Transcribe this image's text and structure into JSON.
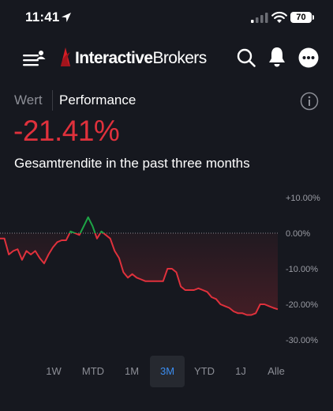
{
  "status_bar": {
    "time": "11:41",
    "battery": "70"
  },
  "header": {
    "brand_bold": "Interactive",
    "brand_regular": "Brokers"
  },
  "tabs": {
    "wert": "Wert",
    "performance": "Performance"
  },
  "performance": {
    "value": "-21.41%",
    "label": "Gesamtrendite in the past three months"
  },
  "colors": {
    "negative": "#e0313c",
    "positive": "#1ea446",
    "accent": "#3b8df0",
    "background": "#16181f"
  },
  "chart_data": {
    "type": "line",
    "ylim": [
      -30,
      10
    ],
    "yticks": [
      "+10.00%",
      "0.00%",
      "-10.00%",
      "-20.00%",
      "-30.00%"
    ],
    "ytick_values": [
      10,
      0,
      -10,
      -20,
      -30
    ],
    "baseline": 0,
    "series": [
      {
        "values": [
          -1.5,
          -1.5,
          -6,
          -5,
          -4.5,
          -7.5,
          -5,
          -6,
          -5,
          -7,
          -8.5,
          -6,
          -4,
          -2.5,
          -2,
          -2,
          0.5,
          0,
          -0.5,
          2,
          4.5,
          2,
          -1.5,
          0.5,
          -0.5,
          -1.5,
          -5,
          -7,
          -11,
          -12.5,
          -11.5,
          -12.5,
          -13,
          -13.5,
          -13.5,
          -13.5,
          -13.5,
          -13.5,
          -10,
          -10,
          -11,
          -15,
          -16,
          -16,
          -16,
          -15.5,
          -16,
          -16.5,
          -18,
          -18.5,
          -20,
          -20.5,
          -21,
          -22,
          -22.5,
          -22.5,
          -23,
          -23,
          -22.5,
          -20,
          -20,
          -20.5,
          -21,
          -21.4
        ]
      }
    ]
  },
  "ranges": [
    {
      "label": "1W",
      "active": false
    },
    {
      "label": "MTD",
      "active": false
    },
    {
      "label": "1M",
      "active": false
    },
    {
      "label": "3M",
      "active": true
    },
    {
      "label": "YTD",
      "active": false
    },
    {
      "label": "1J",
      "active": false
    },
    {
      "label": "Alle",
      "active": false
    }
  ]
}
